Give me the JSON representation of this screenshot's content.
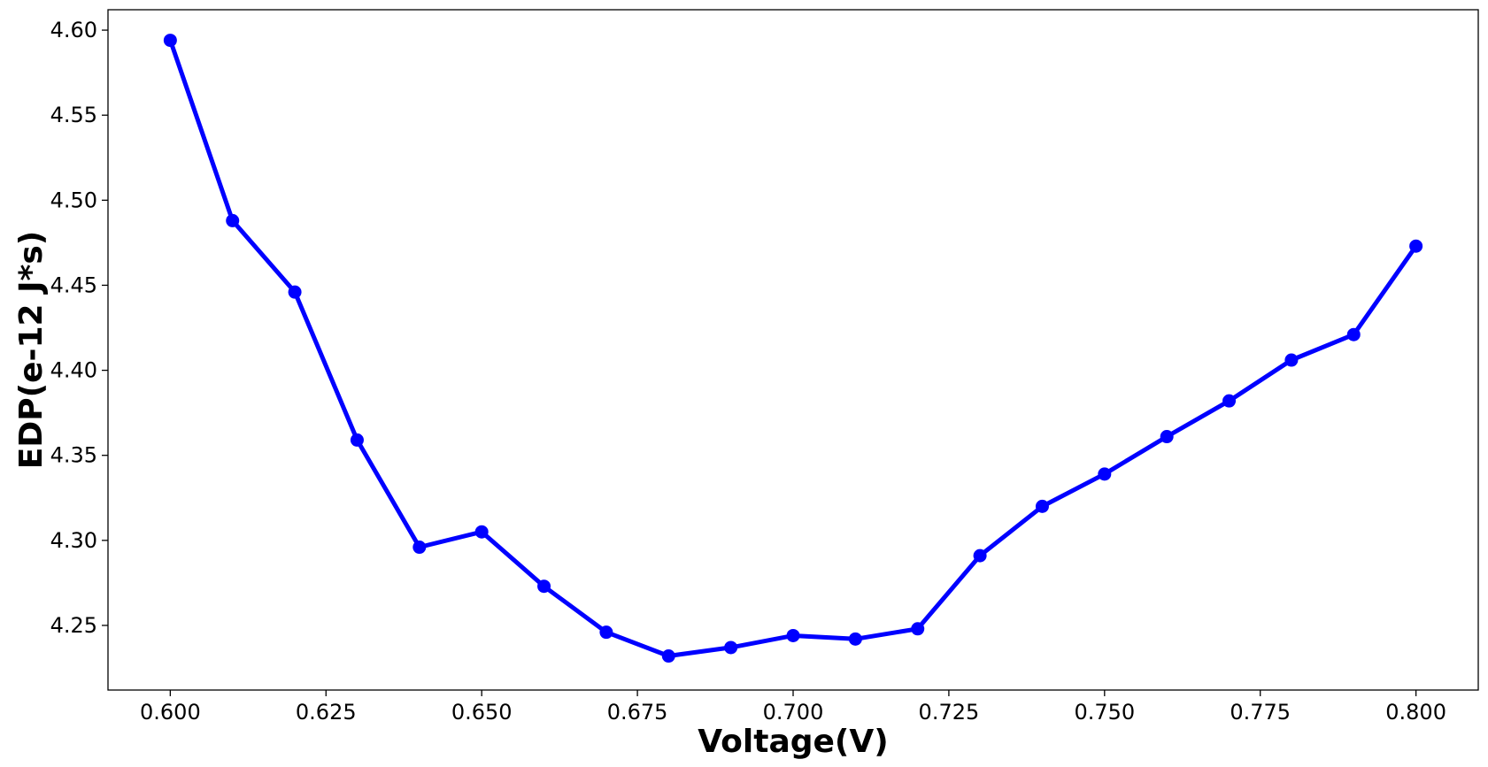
{
  "chart_data": {
    "type": "line",
    "title": "",
    "xlabel": "Voltage(V)",
    "ylabel": "EDP(e-12 J*s)",
    "xlim": [
      0.59,
      0.81
    ],
    "ylim": [
      4.212,
      4.612
    ],
    "x_ticks": [
      0.6,
      0.625,
      0.65,
      0.675,
      0.7,
      0.725,
      0.75,
      0.775,
      0.8
    ],
    "x_tick_labels": [
      "0.600",
      "0.625",
      "0.650",
      "0.675",
      "0.700",
      "0.725",
      "0.750",
      "0.775",
      "0.800"
    ],
    "y_ticks": [
      4.25,
      4.3,
      4.35,
      4.4,
      4.45,
      4.5,
      4.55,
      4.6
    ],
    "y_tick_labels": [
      "4.25",
      "4.30",
      "4.35",
      "4.40",
      "4.45",
      "4.50",
      "4.55",
      "4.60"
    ],
    "grid": false,
    "color": "#0000ff",
    "series": [
      {
        "x": [
          0.6,
          0.61,
          0.62,
          0.63,
          0.64,
          0.65,
          0.66,
          0.67,
          0.68,
          0.69,
          0.7,
          0.71,
          0.72,
          0.73,
          0.74,
          0.75,
          0.76,
          0.77,
          0.78,
          0.79,
          0.8
        ],
        "y": [
          4.594,
          4.488,
          4.446,
          4.359,
          4.296,
          4.305,
          4.273,
          4.246,
          4.232,
          4.237,
          4.244,
          4.242,
          4.248,
          4.291,
          4.32,
          4.339,
          4.361,
          4.382,
          4.406,
          4.421,
          4.473
        ]
      }
    ]
  }
}
